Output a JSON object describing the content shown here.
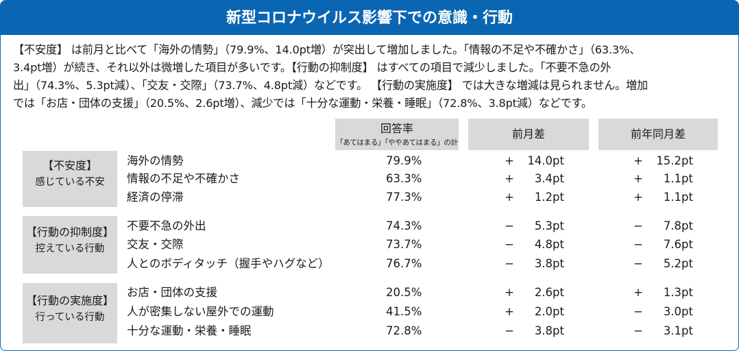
{
  "title": "新型コロナウイルス影響下での意識・行動",
  "summary": "【不安度】 は前月と比べて「海外の情勢」（79.9%、14.0pt増）が突出して増加しました。「情報の不足や不確かさ」（63.3%、\n3.4pt増）が続き、それ以外は微増した項目が多いです。【行動の抑制度】 はすべての項目で減少しました。「不要不急の外\n出」（74.3%、5.3pt減）、「交友・交際」（73.7%、4.8pt減）などです。 【行動の実施度】 では大きな増減は見られません。増加\nでは「お店・団体の支援」（20.5%、2.6pt増）、減少では「十分な運動・栄養・睡眠」（72.8%、3.8pt減）などです。",
  "columns": {
    "rate": "回答率",
    "rate_note": "「あてはまる」「ややあてはまる」の計",
    "prev_month": "前月差",
    "prev_year": "前年同月差"
  },
  "groups": [
    {
      "label1": "【不安度】",
      "label2": "感じている不安",
      "rows": [
        {
          "item": "海外の情勢",
          "rate": "79.9%",
          "m_sign": "+",
          "m_val": "14.0pt",
          "y_sign": "+",
          "y_val": "15.2pt"
        },
        {
          "item": "情報の不足や不確かさ",
          "rate": "63.3%",
          "m_sign": "+",
          "m_val": "3.4pt",
          "y_sign": "+",
          "y_val": "1.1pt"
        },
        {
          "item": "経済の停滞",
          "rate": "77.3%",
          "m_sign": "+",
          "m_val": "1.2pt",
          "y_sign": "+",
          "y_val": "1.1pt"
        }
      ]
    },
    {
      "label1": "【行動の抑制度】",
      "label2": "控えている行動",
      "rows": [
        {
          "item": "不要不急の外出",
          "rate": "74.3%",
          "m_sign": "−",
          "m_val": "5.3pt",
          "y_sign": "−",
          "y_val": "7.8pt"
        },
        {
          "item": "交友・交際",
          "rate": "73.7%",
          "m_sign": "−",
          "m_val": "4.8pt",
          "y_sign": "−",
          "y_val": "7.6pt"
        },
        {
          "item": "人とのボディタッチ（握手やハグなど）",
          "rate": "76.7%",
          "m_sign": "−",
          "m_val": "3.8pt",
          "y_sign": "−",
          "y_val": "5.2pt"
        }
      ]
    },
    {
      "label1": "【行動の実施度】",
      "label2": "行っている行動",
      "rows": [
        {
          "item": "お店・団体の支援",
          "rate": "20.5%",
          "m_sign": "+",
          "m_val": "2.6pt",
          "y_sign": "+",
          "y_val": "1.3pt"
        },
        {
          "item": "人が密集しない屋外での運動",
          "rate": "41.5%",
          "m_sign": "+",
          "m_val": "2.0pt",
          "y_sign": "−",
          "y_val": "3.0pt"
        },
        {
          "item": "十分な運動・栄養・睡眠",
          "rate": "72.8%",
          "m_sign": "−",
          "m_val": "3.8pt",
          "y_sign": "−",
          "y_val": "3.1pt"
        }
      ]
    }
  ]
}
